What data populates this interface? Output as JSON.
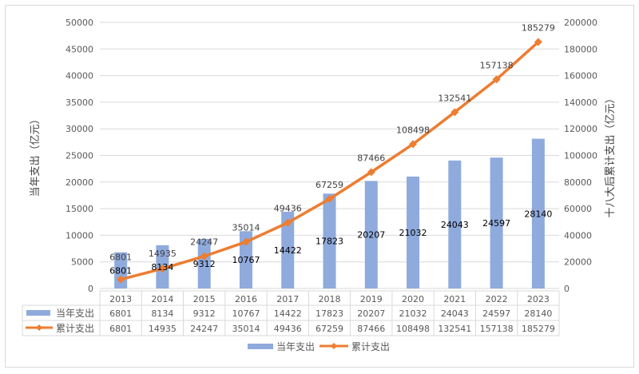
{
  "chart_data": {
    "type": "bar+line",
    "categories": [
      "2013",
      "2014",
      "2015",
      "2016",
      "2017",
      "2018",
      "2019",
      "2020",
      "2021",
      "2022",
      "2023"
    ],
    "series": [
      {
        "name": "当年支出",
        "type": "bar",
        "axis": "left",
        "color": "#8faadc",
        "values": [
          6801,
          8134,
          9312,
          10767,
          14422,
          17823,
          20207,
          21032,
          24043,
          24597,
          28140
        ]
      },
      {
        "name": "累计支出",
        "type": "line",
        "axis": "right",
        "color": "#ed7d31",
        "values": [
          6801,
          14935,
          24247,
          35014,
          49436,
          67259,
          87466,
          108498,
          132541,
          157138,
          185279
        ]
      }
    ],
    "ylabel": "当年支出（亿元）",
    "y2label": "十八大后累计支出（亿元）",
    "ylim": [
      0,
      50000
    ],
    "yticks": [
      0,
      5000,
      10000,
      15000,
      20000,
      25000,
      30000,
      35000,
      40000,
      45000,
      50000
    ],
    "y2lim": [
      0,
      200000
    ],
    "y2ticks": [
      0,
      20000,
      40000,
      60000,
      80000,
      100000,
      120000,
      140000,
      160000,
      180000,
      200000
    ],
    "grid": true,
    "legend": "bottom",
    "data_table": true
  }
}
